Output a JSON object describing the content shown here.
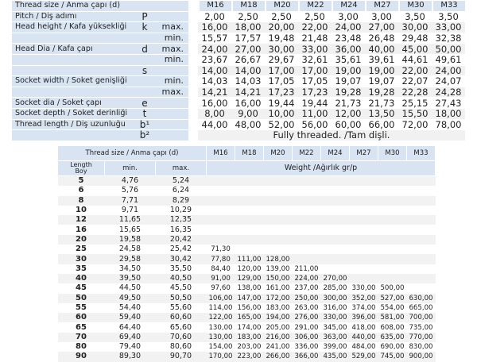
{
  "sizes": [
    "M16",
    "M18",
    "M20",
    "M22",
    "M24",
    "M27",
    "M30",
    "M33"
  ],
  "spec_table": {
    "header_label": "Thread size / Anma çapı (d)",
    "rows": [
      {
        "label": "Pitch / Diş adımı",
        "symbol": "P",
        "minmax": "",
        "values": [
          "2,00",
          "2,50",
          "2,50",
          "2,50",
          "3,00",
          "3,00",
          "3,50",
          "3,50"
        ]
      },
      {
        "label": "Head height / Kafa yüksekliği",
        "symbol": "k",
        "minmax": "max.",
        "values": [
          "16,00",
          "18,00",
          "20,00",
          "22,00",
          "24,00",
          "27,00",
          "30,00",
          "33,00"
        ]
      },
      {
        "label": "",
        "symbol": "",
        "minmax": "min.",
        "values": [
          "15,57",
          "17,57",
          "19,48",
          "21,48",
          "23,48",
          "26,48",
          "29,48",
          "32,38"
        ]
      },
      {
        "label": "Head Dia / Kafa çapı",
        "symbol": "d",
        "minmax": "max.",
        "values": [
          "24,00",
          "27,00",
          "30,00",
          "33,00",
          "36,00",
          "40,00",
          "45,00",
          "50,00"
        ]
      },
      {
        "label": "",
        "symbol": "",
        "minmax": "min.",
        "values": [
          "23,67",
          "26,67",
          "29,67",
          "32,61",
          "35,61",
          "39,61",
          "44,61",
          "49,61"
        ]
      },
      {
        "label": "",
        "symbol": "s",
        "minmax": "",
        "values": [
          "14,00",
          "14,00",
          "17,00",
          "17,00",
          "19,00",
          "19,00",
          "22,00",
          "24,00"
        ]
      },
      {
        "label": "Socket width / Soket genişliği",
        "symbol": "",
        "minmax": "min.",
        "values": [
          "14,03",
          "14,03",
          "17,05",
          "17,05",
          "19,07",
          "19,07",
          "22,07",
          "24,07"
        ]
      },
      {
        "label": "",
        "symbol": "",
        "minmax": "max.",
        "values": [
          "14,21",
          "14,21",
          "17,23",
          "17,23",
          "19,28",
          "19,28",
          "22,28",
          "24,28"
        ]
      },
      {
        "label": "Socket dia / Soket çapı",
        "symbol": "e",
        "minmax": "",
        "values": [
          "16,00",
          "16,00",
          "19,44",
          "19,44",
          "21,73",
          "21,73",
          "25,15",
          "27,43"
        ]
      },
      {
        "label": "Socket depth / Soket derinliği",
        "symbol": "t",
        "minmax": "",
        "values": [
          "8,00",
          "9,00",
          "10,00",
          "11,00",
          "12,00",
          "13,50",
          "15,50",
          "18,00"
        ]
      },
      {
        "label": "Thread length / Diş uzunluğu",
        "symbol": "b¹",
        "minmax": "",
        "values": [
          "44,00",
          "48,00",
          "52,00",
          "56,00",
          "60,00",
          "66,00",
          "72,00",
          "78,00"
        ]
      }
    ],
    "b2_symbol": "b²",
    "b2_text": "Fully threaded. /Tam dişli."
  },
  "weight_table": {
    "header_label": "Thread size / Anma çapı (d)",
    "length_label": "Length\nBoy",
    "min_label": "min.",
    "max_label": "max.",
    "weight_label": "Weight /Ağırlık gr/p",
    "rows": [
      {
        "len": "5",
        "min": "4,76",
        "max": "5,24",
        "w": [
          "",
          "",
          "",
          "",
          "",
          "",
          "",
          ""
        ]
      },
      {
        "len": "6",
        "min": "5,76",
        "max": "6,24",
        "w": [
          "",
          "",
          "",
          "",
          "",
          "",
          "",
          ""
        ]
      },
      {
        "len": "8",
        "min": "7,71",
        "max": "8,29",
        "w": [
          "",
          "",
          "",
          "",
          "",
          "",
          "",
          ""
        ]
      },
      {
        "len": "10",
        "min": "9,71",
        "max": "10,29",
        "w": [
          "",
          "",
          "",
          "",
          "",
          "",
          "",
          ""
        ]
      },
      {
        "len": "12",
        "min": "11,65",
        "max": "12,35",
        "w": [
          "",
          "",
          "",
          "",
          "",
          "",
          "",
          ""
        ]
      },
      {
        "len": "16",
        "min": "15,65",
        "max": "16,35",
        "w": [
          "",
          "",
          "",
          "",
          "",
          "",
          "",
          ""
        ]
      },
      {
        "len": "20",
        "min": "19,58",
        "max": "20,42",
        "w": [
          "",
          "",
          "",
          "",
          "",
          "",
          "",
          ""
        ]
      },
      {
        "len": "25",
        "min": "24,58",
        "max": "25,42",
        "w": [
          "71,30",
          "",
          "",
          "",
          "",
          "",
          "",
          ""
        ]
      },
      {
        "len": "30",
        "min": "29,58",
        "max": "30,42",
        "w": [
          "77,80",
          "111,00",
          "128,00",
          "",
          "",
          "",
          "",
          ""
        ]
      },
      {
        "len": "35",
        "min": "34,50",
        "max": "35,50",
        "w": [
          "84,40",
          "120,00",
          "139,00",
          "211,00",
          "",
          "",
          "",
          ""
        ]
      },
      {
        "len": "40",
        "min": "39,50",
        "max": "40,50",
        "w": [
          "91,00",
          "129,00",
          "150,00",
          "224,00",
          "270,00",
          "",
          "",
          ""
        ]
      },
      {
        "len": "45",
        "min": "44,50",
        "max": "45,50",
        "w": [
          "97,60",
          "138,00",
          "161,00",
          "237,00",
          "285,00",
          "330,00",
          "500,00",
          ""
        ]
      },
      {
        "len": "50",
        "min": "49,50",
        "max": "50,50",
        "w": [
          "106,00",
          "147,00",
          "172,00",
          "250,00",
          "300,00",
          "352,00",
          "527,00",
          "630,00"
        ]
      },
      {
        "len": "55",
        "min": "54,40",
        "max": "55,60",
        "w": [
          "114,00",
          "156,00",
          "183,00",
          "263,00",
          "316,00",
          "374,00",
          "554,00",
          "665,00"
        ]
      },
      {
        "len": "60",
        "min": "59,40",
        "max": "60,60",
        "w": [
          "122,00",
          "165,00",
          "194,00",
          "276,00",
          "330,00",
          "396,00",
          "581,00",
          "700,00"
        ]
      },
      {
        "len": "65",
        "min": "64,40",
        "max": "65,60",
        "w": [
          "130,00",
          "174,00",
          "205,00",
          "291,00",
          "345,00",
          "418,00",
          "608,00",
          "735,00"
        ]
      },
      {
        "len": "70",
        "min": "69,40",
        "max": "70,60",
        "w": [
          "130,00",
          "183,00",
          "216,00",
          "306,00",
          "363,00",
          "440,00",
          "635,00",
          "770,00"
        ]
      },
      {
        "len": "80",
        "min": "79,40",
        "max": "80,60",
        "w": [
          "154,00",
          "203,00",
          "241,00",
          "336,00",
          "399,00",
          "484,00",
          "690,00",
          "830,00"
        ]
      },
      {
        "len": "90",
        "min": "89,30",
        "max": "90,70",
        "w": [
          "170,00",
          "223,00",
          "266,00",
          "366,00",
          "435,00",
          "529,00",
          "745,00",
          "900,00"
        ]
      }
    ]
  }
}
